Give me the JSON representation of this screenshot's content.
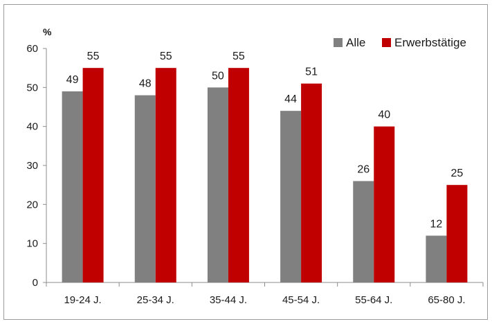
{
  "chart_data": {
    "type": "bar",
    "title": "",
    "ylabel": "%",
    "xlabel": "",
    "ylim": [
      0,
      60
    ],
    "yticks": [
      0,
      10,
      20,
      30,
      40,
      50,
      60
    ],
    "grid": false,
    "legend_position": "top-right",
    "categories": [
      "19-24 J.",
      "25-34 J.",
      "35-44 J.",
      "45-54 J.",
      "55-64 J.",
      "65-80 J."
    ],
    "series": [
      {
        "name": "Alle",
        "color": "#808080",
        "values": [
          49,
          48,
          50,
          44,
          26,
          12
        ]
      },
      {
        "name": "Erwerbstätige",
        "color": "#c00000",
        "values": [
          55,
          55,
          55,
          51,
          40,
          25
        ]
      }
    ]
  }
}
